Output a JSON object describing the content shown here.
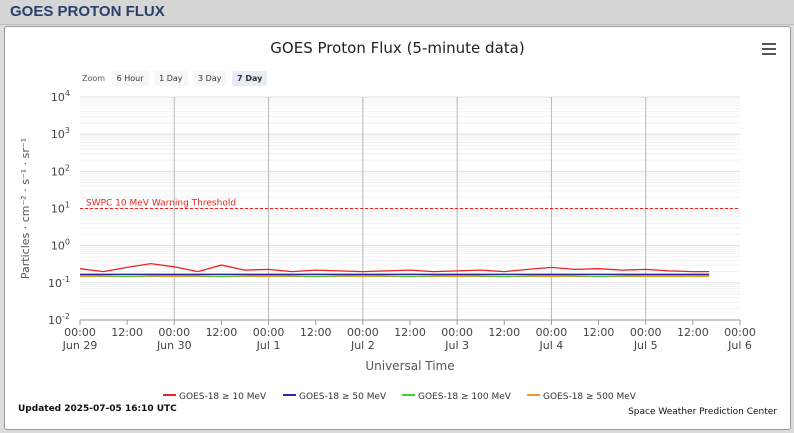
{
  "panel": {
    "title": "GOES PROTON FLUX"
  },
  "zoom": {
    "label": "Zoom",
    "buttons": [
      "6 Hour",
      "1 Day",
      "3 Day",
      "7 Day"
    ],
    "active": "7 Day"
  },
  "footer": {
    "updated": "Updated 2025-07-05 16:10 UTC",
    "credit": "Space Weather Prediction Center"
  },
  "chart_data": {
    "type": "line",
    "title": "GOES Proton Flux (5-minute data)",
    "xlabel": "Universal Time",
    "ylabel": "Particles · cm⁻² · s⁻¹ · sr⁻¹",
    "yscale": "log",
    "ylim": [
      0.01,
      10000
    ],
    "y_ticks": [
      {
        "value": 10000,
        "base": "10",
        "exp": "4"
      },
      {
        "value": 1000,
        "base": "10",
        "exp": "3"
      },
      {
        "value": 100,
        "base": "10",
        "exp": "2"
      },
      {
        "value": 10,
        "base": "10",
        "exp": "1"
      },
      {
        "value": 1,
        "base": "10",
        "exp": "0"
      },
      {
        "value": 0.1,
        "base": "10",
        "exp": "-1"
      },
      {
        "value": 0.01,
        "base": "10",
        "exp": "-2"
      }
    ],
    "xlim": [
      "2025-06-29 00:00",
      "2025-07-06 00:00"
    ],
    "x_ticks": [
      {
        "time": "2025-06-29 00:00",
        "label": "00:00",
        "date": "Jun 29"
      },
      {
        "time": "2025-06-29 12:00",
        "label": "12:00",
        "date": ""
      },
      {
        "time": "2025-06-30 00:00",
        "label": "00:00",
        "date": "Jun 30"
      },
      {
        "time": "2025-06-30 12:00",
        "label": "12:00",
        "date": ""
      },
      {
        "time": "2025-07-01 00:00",
        "label": "00:00",
        "date": "Jul 1"
      },
      {
        "time": "2025-07-01 12:00",
        "label": "12:00",
        "date": ""
      },
      {
        "time": "2025-07-02 00:00",
        "label": "00:00",
        "date": "Jul 2"
      },
      {
        "time": "2025-07-02 12:00",
        "label": "12:00",
        "date": ""
      },
      {
        "time": "2025-07-03 00:00",
        "label": "00:00",
        "date": "Jul 3"
      },
      {
        "time": "2025-07-03 12:00",
        "label": "12:00",
        "date": ""
      },
      {
        "time": "2025-07-04 00:00",
        "label": "00:00",
        "date": "Jul 4"
      },
      {
        "time": "2025-07-04 12:00",
        "label": "12:00",
        "date": ""
      },
      {
        "time": "2025-07-05 00:00",
        "label": "00:00",
        "date": "Jul 5"
      },
      {
        "time": "2025-07-05 12:00",
        "label": "12:00",
        "date": ""
      },
      {
        "time": "2025-07-06 00:00",
        "label": "00:00",
        "date": "Jul 6"
      }
    ],
    "day_gridlines": [
      "2025-06-30 00:00",
      "2025-07-01 00:00",
      "2025-07-02 00:00",
      "2025-07-03 00:00",
      "2025-07-04 00:00",
      "2025-07-05 00:00"
    ],
    "threshold": {
      "label": "SWPC 10 MeV Warning Threshold",
      "value": 10,
      "color": "#e8231f"
    },
    "grid": true,
    "legend": "bottom",
    "series": [
      {
        "name": "GOES-18 ≥ 10 MeV",
        "color": "#ee2222",
        "times": [
          "2025-06-29 00:00",
          "2025-06-29 06:00",
          "2025-06-29 12:00",
          "2025-06-29 18:00",
          "2025-06-30 00:00",
          "2025-06-30 06:00",
          "2025-06-30 12:00",
          "2025-06-30 18:00",
          "2025-07-01 00:00",
          "2025-07-01 06:00",
          "2025-07-01 12:00",
          "2025-07-01 18:00",
          "2025-07-02 00:00",
          "2025-07-02 06:00",
          "2025-07-02 12:00",
          "2025-07-02 18:00",
          "2025-07-03 00:00",
          "2025-07-03 06:00",
          "2025-07-03 12:00",
          "2025-07-03 18:00",
          "2025-07-04 00:00",
          "2025-07-04 06:00",
          "2025-07-04 12:00",
          "2025-07-04 18:00",
          "2025-07-05 00:00",
          "2025-07-05 06:00",
          "2025-07-05 12:00",
          "2025-07-05 16:10"
        ],
        "values": [
          0.24,
          0.2,
          0.26,
          0.33,
          0.27,
          0.2,
          0.3,
          0.22,
          0.23,
          0.2,
          0.22,
          0.21,
          0.2,
          0.21,
          0.22,
          0.2,
          0.21,
          0.22,
          0.2,
          0.23,
          0.26,
          0.23,
          0.24,
          0.22,
          0.23,
          0.21,
          0.2,
          0.2
        ]
      },
      {
        "name": "GOES-18 ≥ 50 MeV",
        "color": "#2a2aa6",
        "times": [
          "2025-06-29 00:00",
          "2025-06-30 00:00",
          "2025-07-01 00:00",
          "2025-07-02 00:00",
          "2025-07-03 00:00",
          "2025-07-04 00:00",
          "2025-07-05 00:00",
          "2025-07-05 16:10"
        ],
        "values": [
          0.17,
          0.17,
          0.17,
          0.17,
          0.17,
          0.17,
          0.17,
          0.17
        ]
      },
      {
        "name": "GOES-18 ≥ 100 MeV",
        "color": "#44cc33",
        "times": [
          "2025-06-29 00:00",
          "2025-06-29 12:00",
          "2025-06-30 00:00",
          "2025-06-30 12:00",
          "2025-07-01 00:00",
          "2025-07-01 12:00",
          "2025-07-02 00:00",
          "2025-07-02 12:00",
          "2025-07-03 00:00",
          "2025-07-03 12:00",
          "2025-07-04 00:00",
          "2025-07-04 12:00",
          "2025-07-05 00:00",
          "2025-07-05 16:10"
        ],
        "values": [
          0.16,
          0.15,
          0.16,
          0.15,
          0.16,
          0.15,
          0.16,
          0.15,
          0.16,
          0.15,
          0.16,
          0.15,
          0.16,
          0.16
        ]
      },
      {
        "name": "GOES-18 ≥ 500 MeV",
        "color": "#ee9c22",
        "times": [
          "2025-06-29 00:00",
          "2025-06-30 00:00",
          "2025-07-01 00:00",
          "2025-07-02 00:00",
          "2025-07-03 00:00",
          "2025-07-04 00:00",
          "2025-07-05 00:00",
          "2025-07-05 16:10"
        ],
        "values": [
          0.15,
          0.15,
          0.15,
          0.15,
          0.15,
          0.15,
          0.15,
          0.15
        ]
      }
    ]
  }
}
